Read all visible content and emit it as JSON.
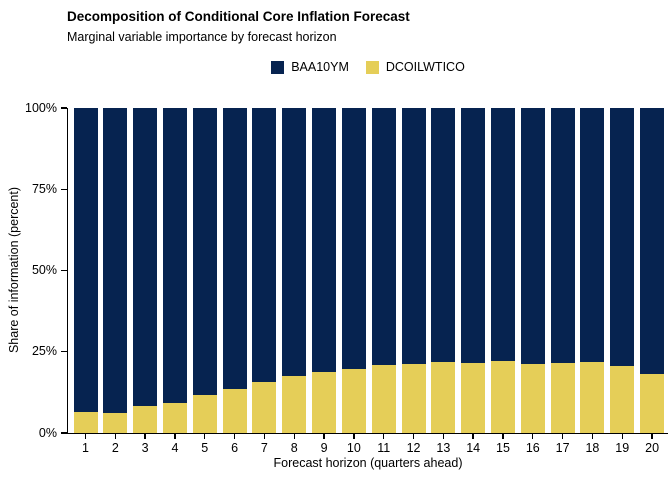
{
  "chart_data": {
    "type": "bar",
    "stacked": true,
    "title": "Decomposition of Conditional Core Inflation Forecast",
    "subtitle": "Marginal variable importance by forecast horizon",
    "xlabel": "Forecast horizon (quarters ahead)",
    "ylabel": "Share of information (percent)",
    "categories": [
      "1",
      "2",
      "3",
      "4",
      "5",
      "6",
      "7",
      "8",
      "9",
      "10",
      "11",
      "12",
      "13",
      "14",
      "15",
      "16",
      "17",
      "18",
      "19",
      "20"
    ],
    "series": [
      {
        "name": "BAA10YM",
        "color": "#062350",
        "stack_position": "top",
        "values": [
          93.5,
          93.8,
          91.6,
          90.8,
          88.4,
          86.6,
          84.4,
          82.5,
          81.1,
          80.2,
          79.2,
          78.9,
          78.2,
          78.4,
          77.8,
          78.9,
          78.6,
          78.2,
          79.4,
          81.8
        ]
      },
      {
        "name": "DCOILWTICO",
        "color": "#E5CE58",
        "stack_position": "bottom",
        "values": [
          6.5,
          6.2,
          8.4,
          9.2,
          11.6,
          13.4,
          15.6,
          17.5,
          18.9,
          19.8,
          20.8,
          21.1,
          21.8,
          21.6,
          22.2,
          21.1,
          21.4,
          21.8,
          20.6,
          18.2
        ]
      }
    ],
    "ylim": [
      0,
      100
    ],
    "y_axis": {
      "tick_values": [
        0,
        25,
        50,
        75,
        100
      ],
      "tick_labels": [
        "0%",
        "25%",
        "50%",
        "75%",
        "100%"
      ]
    },
    "legend_position": "top-center",
    "grid": false,
    "background_color": "#FFFFFF",
    "axis_color": "#000000",
    "text_color": "#000000"
  }
}
